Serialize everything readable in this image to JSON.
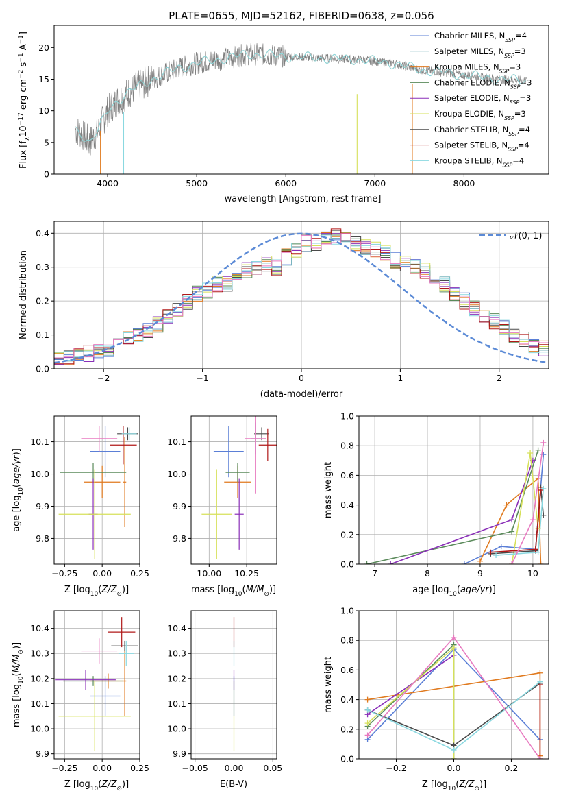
{
  "title": "PLATE=0655, MJD=52162, FIBERID=0638, z=0.056",
  "colors": {
    "Chabrier MILES": "#5b7fd6",
    "Salpeter MILES": "#7ab6be",
    "Kroupa MILES": "#e07a1f",
    "Chabrier ELODIE": "#5a8a5a",
    "Salpeter ELODIE": "#8a2fb8",
    "Kroupa ELODIE": "#d6e05a",
    "Chabrier STELIB": "#4a4a4a",
    "Salpeter STELIB": "#b01818",
    "Kroupa STELIB": "#8ad8e0",
    "pink": "#e87ac0",
    "data": "#808080",
    "gauss": "#5b8ad6",
    "grid": "#b0b0b0"
  },
  "chart_data": [
    {
      "type": "line",
      "name": "spectrum",
      "xlabel": "wavelength [Angstrom, rest frame]",
      "ylabel": "Flux [f_λ10^-17 erg cm^-2 s^-1 A^-1]",
      "xlim": [
        3400,
        8950
      ],
      "ylim": [
        0,
        23.5
      ],
      "xticks": [
        4000,
        5000,
        6000,
        7000,
        8000
      ],
      "yticks": [
        0,
        5,
        10,
        15,
        20
      ],
      "grid": false,
      "legend_position": "top-right",
      "legend": [
        {
          "model": "Chabrier MILES",
          "nssp": "4"
        },
        {
          "model": "Salpeter MILES",
          "nssp": "3"
        },
        {
          "model": "Kroupa MILES",
          "nssp": "3"
        },
        {
          "model": "Chabrier ELODIE",
          "nssp": "3"
        },
        {
          "model": "Salpeter ELODIE",
          "nssp": "3"
        },
        {
          "model": "Kroupa ELODIE",
          "nssp": "3"
        },
        {
          "model": "Chabrier STELIB",
          "nssp": "4"
        },
        {
          "model": "Salpeter STELIB",
          "nssp": "4"
        },
        {
          "model": "Kroupa STELIB",
          "nssp": "4"
        }
      ],
      "continuum": {
        "x": [
          3640,
          3700,
          3800,
          3900,
          4000,
          4100,
          4300,
          4500,
          4800,
          5000,
          5200,
          5400,
          5600,
          5800,
          6000,
          6300,
          6600,
          6900,
          7200,
          7500,
          7800,
          8100,
          8400,
          8700
        ],
        "y": [
          7.0,
          6.5,
          5.0,
          7.0,
          10.0,
          11.5,
          13.5,
          15.0,
          16.8,
          17.5,
          18.0,
          18.5,
          19.0,
          18.8,
          18.6,
          18.4,
          18.2,
          18.0,
          17.5,
          16.5,
          16.0,
          15.5,
          15.0,
          14.8
        ]
      }
    },
    {
      "type": "histogram",
      "name": "residuals",
      "xlabel": "(data-model)/error",
      "ylabel": "Normed distribution",
      "xlim": [
        -2.5,
        2.5
      ],
      "ylim": [
        0,
        0.435
      ],
      "xticks": [
        -2,
        -1,
        0,
        1,
        2
      ],
      "yticks": [
        0.0,
        0.1,
        0.2,
        0.3,
        0.4
      ],
      "grid": true,
      "legend": "𝒩(0, 1)",
      "legend_position": "top-right",
      "bin_edges_start": -2.5,
      "bin_width": 0.1,
      "base_values": [
        0.03,
        0.035,
        0.04,
        0.045,
        0.05,
        0.06,
        0.075,
        0.09,
        0.1,
        0.11,
        0.13,
        0.15,
        0.17,
        0.2,
        0.22,
        0.23,
        0.25,
        0.25,
        0.27,
        0.29,
        0.3,
        0.31,
        0.3,
        0.33,
        0.35,
        0.37,
        0.37,
        0.38,
        0.39,
        0.38,
        0.37,
        0.36,
        0.35,
        0.34,
        0.32,
        0.31,
        0.3,
        0.29,
        0.27,
        0.25,
        0.22,
        0.2,
        0.18,
        0.16,
        0.14,
        0.12,
        0.1,
        0.09,
        0.07,
        0.06
      ]
    },
    {
      "type": "scatter",
      "name": "age vs metallicity",
      "xlabel": "Z [log10(Z/Z⊙)]",
      "ylabel": "age [log10(age/yr)]",
      "xlim": [
        -0.32,
        0.25
      ],
      "ylim": [
        9.72,
        10.18
      ],
      "xticks": [
        -0.25,
        0.0,
        0.25
      ],
      "yticks": [
        9.8,
        9.9,
        10.0,
        10.1
      ],
      "points": [
        {
          "model": "Chabrier MILES",
          "x": 0.02,
          "y": 10.07,
          "xerr": 0.1,
          "yerr": 0.08
        },
        {
          "model": "Kroupa MILES",
          "x": 0.0,
          "y": 9.975,
          "xerr": 0.12,
          "yerr": 0.05
        },
        {
          "model": "Kroupa MILES",
          "x": 0.15,
          "y": 9.975,
          "xerr": 0.01,
          "yerr": 0.14
        },
        {
          "model": "Chabrier ELODIE",
          "x": -0.06,
          "y": 10.005,
          "xerr": 0.22,
          "yerr": 0.03
        },
        {
          "model": "Salpeter ELODIE",
          "x": -0.06,
          "y": 9.875,
          "xerr": 0.03,
          "yerr": 0.11
        },
        {
          "model": "Kroupa ELODIE",
          "x": -0.05,
          "y": 9.875,
          "xerr": 0.24,
          "yerr": 0.14
        },
        {
          "model": "Chabrier STELIB",
          "x": 0.17,
          "y": 10.125,
          "xerr": 0.07,
          "yerr": 0.02
        },
        {
          "model": "Salpeter STELIB",
          "x": 0.14,
          "y": 10.09,
          "xerr": 0.09,
          "yerr": 0.06
        },
        {
          "model": "Kroupa STELIB",
          "x": 0.18,
          "y": 10.125,
          "xerr": 0.05,
          "yerr": 0.02
        },
        {
          "model": "pink",
          "x": -0.02,
          "y": 10.11,
          "xerr": 0.12,
          "yerr": 0.04
        }
      ]
    },
    {
      "type": "scatter",
      "name": "age vs mass",
      "xlabel": "mass [log10(M/M⊙)]",
      "ylabel": "",
      "xlim": [
        9.88,
        10.45
      ],
      "ylim": [
        9.72,
        10.18
      ],
      "xticks": [
        10.0,
        10.25
      ],
      "yticks": [
        9.8,
        9.9,
        10.0,
        10.1
      ],
      "points": [
        {
          "model": "Chabrier MILES",
          "x": 10.13,
          "y": 10.07,
          "xerr": 0.1,
          "yerr": 0.08
        },
        {
          "model": "Kroupa MILES",
          "x": 10.19,
          "y": 9.975,
          "xerr": 0.09,
          "yerr": 0.05
        },
        {
          "model": "Chabrier ELODIE",
          "x": 10.19,
          "y": 10.005,
          "xerr": 0.08,
          "yerr": 0.03
        },
        {
          "model": "Salpeter ELODIE",
          "x": 10.2,
          "y": 9.875,
          "xerr": 0.03,
          "yerr": 0.11
        },
        {
          "model": "Kroupa ELODIE",
          "x": 10.05,
          "y": 9.875,
          "xerr": 0.1,
          "yerr": 0.14
        },
        {
          "model": "Chabrier STELIB",
          "x": 10.35,
          "y": 10.125,
          "xerr": 0.05,
          "yerr": 0.02
        },
        {
          "model": "Salpeter STELIB",
          "x": 10.39,
          "y": 10.09,
          "xerr": 0.06,
          "yerr": 0.05
        },
        {
          "model": "Kroupa STELIB",
          "x": 10.31,
          "y": 10.11,
          "xerr": 0.03,
          "yerr": 0.05
        },
        {
          "model": "pink",
          "x": 10.31,
          "y": 10.11,
          "xerr": 0.07,
          "yerr": 0.17
        }
      ]
    },
    {
      "type": "line",
      "name": "mass weight vs age",
      "xlabel": "age [log10(age/yr)]",
      "ylabel": "mass weight",
      "xlim": [
        6.7,
        10.3
      ],
      "ylim": [
        0,
        1.0
      ],
      "xticks": [
        7,
        8,
        9,
        10
      ],
      "yticks": [
        0.0,
        0.2,
        0.4,
        0.6,
        0.8,
        1.0
      ],
      "grid": true,
      "series": [
        {
          "model": "Chabrier MILES",
          "x": [
            8.7,
            9.4,
            10.05,
            10.2
          ],
          "y": [
            0.0,
            0.12,
            0.1,
            0.74
          ]
        },
        {
          "model": "Kroupa MILES",
          "x": [
            9.0,
            9.5,
            10.1,
            10.15
          ],
          "y": [
            0.02,
            0.4,
            0.58,
            0.0
          ]
        },
        {
          "model": "Chabrier ELODIE",
          "x": [
            6.85,
            9.6,
            10.1
          ],
          "y": [
            0.0,
            0.22,
            0.77
          ]
        },
        {
          "model": "Salpeter ELODIE",
          "x": [
            7.3,
            9.6,
            10.0
          ],
          "y": [
            0.0,
            0.3,
            0.7
          ]
        },
        {
          "model": "Kroupa ELODIE",
          "x": [
            9.6,
            9.95,
            10.1
          ],
          "y": [
            0.0,
            0.75,
            0.24
          ]
        },
        {
          "model": "Chabrier STELIB",
          "x": [
            9.2,
            10.05,
            10.15,
            10.2
          ],
          "y": [
            0.07,
            0.09,
            0.52,
            0.33
          ]
        },
        {
          "model": "Salpeter STELIB",
          "x": [
            9.2,
            10.05,
            10.15
          ],
          "y": [
            0.08,
            0.1,
            0.5
          ]
        },
        {
          "model": "Kroupa STELIB",
          "x": [
            9.3,
            10.1,
            10.2
          ],
          "y": [
            0.06,
            0.08,
            0.51
          ]
        },
        {
          "model": "pink",
          "x": [
            9.6,
            10.0,
            10.2
          ],
          "y": [
            0.0,
            0.3,
            0.82
          ]
        }
      ]
    },
    {
      "type": "scatter",
      "name": "mass vs metallicity",
      "xlabel": "Z [log10(Z/Z⊙)]",
      "ylabel": "mass [log10(M/M⊙)]",
      "xlim": [
        -0.32,
        0.25
      ],
      "ylim": [
        9.88,
        10.47
      ],
      "xticks": [
        -0.25,
        0.0,
        0.25
      ],
      "yticks": [
        9.9,
        10.0,
        10.1,
        10.2,
        10.3,
        10.4
      ],
      "points": [
        {
          "model": "Chabrier MILES",
          "x": 0.02,
          "y": 10.13,
          "xerr": 0.1,
          "yerr": 0.08
        },
        {
          "model": "Kroupa MILES",
          "x": 0.04,
          "y": 10.19,
          "xerr": 0.12,
          "yerr": 0.03
        },
        {
          "model": "Kroupa MILES",
          "x": 0.15,
          "y": 10.19,
          "xerr": 0.01,
          "yerr": 0.14
        },
        {
          "model": "Chabrier ELODIE",
          "x": -0.06,
          "y": 10.19,
          "xerr": 0.2,
          "yerr": 0.02
        },
        {
          "model": "Salpeter ELODIE",
          "x": -0.11,
          "y": 10.195,
          "xerr": 0.2,
          "yerr": 0.04
        },
        {
          "model": "Kroupa ELODIE",
          "x": -0.05,
          "y": 10.05,
          "xerr": 0.24,
          "yerr": 0.14
        },
        {
          "model": "Chabrier STELIB",
          "x": 0.15,
          "y": 10.33,
          "xerr": 0.09,
          "yerr": 0.02
        },
        {
          "model": "Salpeter STELIB",
          "x": 0.13,
          "y": 10.385,
          "xerr": 0.09,
          "yerr": 0.06
        },
        {
          "model": "Kroupa STELIB",
          "x": 0.16,
          "y": 10.3,
          "xerr": 0.05,
          "yerr": 0.05
        },
        {
          "model": "pink",
          "x": -0.02,
          "y": 10.31,
          "xerr": 0.12,
          "yerr": 0.05
        }
      ]
    },
    {
      "type": "scatter",
      "name": "mass vs reddening",
      "xlabel": "E(B-V)",
      "ylabel": "",
      "xlim": [
        -0.055,
        0.055
      ],
      "ylim": [
        9.88,
        10.47
      ],
      "xticks": [
        -0.05,
        0.0,
        0.05
      ],
      "xtick_labels": [
        "−0.05",
        "0.00",
        "0.05"
      ],
      "yticks": [
        9.9,
        10.0,
        10.1,
        10.2,
        10.3,
        10.4
      ],
      "points": [
        {
          "model": "Kroupa ELODIE",
          "x": 0.0,
          "y": 10.05,
          "xerr": 0.0,
          "yerr": 0.14
        },
        {
          "model": "Salpeter ELODIE",
          "x": 0.0,
          "y": 10.195,
          "xerr": 0.0,
          "yerr": 0.04
        },
        {
          "model": "Chabrier MILES",
          "x": 0.0,
          "y": 10.13,
          "xerr": 0.0,
          "yerr": 0.08
        },
        {
          "model": "Salpeter STELIB",
          "x": 0.0,
          "y": 10.385,
          "xerr": 0.0,
          "yerr": 0.06
        },
        {
          "model": "Kroupa STELIB",
          "x": 0.0,
          "y": 10.3,
          "xerr": 0.0,
          "yerr": 0.05
        }
      ]
    },
    {
      "type": "line",
      "name": "mass weight vs metallicity",
      "xlabel": "Z [log10(Z/Z⊙)]",
      "ylabel": "mass weight",
      "xlim": [
        -0.33,
        0.33
      ],
      "ylim": [
        0,
        1.0
      ],
      "xticks": [
        -0.2,
        0.0,
        0.2
      ],
      "xtick_labels": [
        "−0.2",
        "0.0",
        "0.2"
      ],
      "yticks": [
        0.0,
        0.2,
        0.4,
        0.6,
        0.8,
        1.0
      ],
      "grid": true,
      "series": [
        {
          "model": "Chabrier MILES",
          "x": [
            -0.3,
            0.0,
            0.3
          ],
          "y": [
            0.13,
            0.74,
            0.13
          ]
        },
        {
          "model": "Kroupa MILES",
          "x": [
            -0.3,
            0.3,
            0.3
          ],
          "y": [
            0.4,
            0.58,
            0.02
          ]
        },
        {
          "model": "Chabrier ELODIE",
          "x": [
            -0.3,
            0.0,
            0.0
          ],
          "y": [
            0.22,
            0.77,
            0.0
          ]
        },
        {
          "model": "Salpeter ELODIE",
          "x": [
            -0.3,
            0.0
          ],
          "y": [
            0.3,
            0.7
          ]
        },
        {
          "model": "Kroupa ELODIE",
          "x": [
            -0.3,
            0.0,
            0.0
          ],
          "y": [
            0.24,
            0.75,
            0.0
          ]
        },
        {
          "model": "Chabrier STELIB",
          "x": [
            -0.3,
            0.0,
            0.3
          ],
          "y": [
            0.33,
            0.09,
            0.51
          ]
        },
        {
          "model": "Salpeter STELIB",
          "x": [
            0.3,
            0.3
          ],
          "y": [
            0.5,
            0.0
          ]
        },
        {
          "model": "Kroupa STELIB",
          "x": [
            -0.3,
            0.0,
            0.3
          ],
          "y": [
            0.33,
            0.06,
            0.52
          ]
        },
        {
          "model": "pink",
          "x": [
            -0.3,
            0.0,
            0.3
          ],
          "y": [
            0.16,
            0.82,
            0.0
          ]
        }
      ]
    }
  ]
}
